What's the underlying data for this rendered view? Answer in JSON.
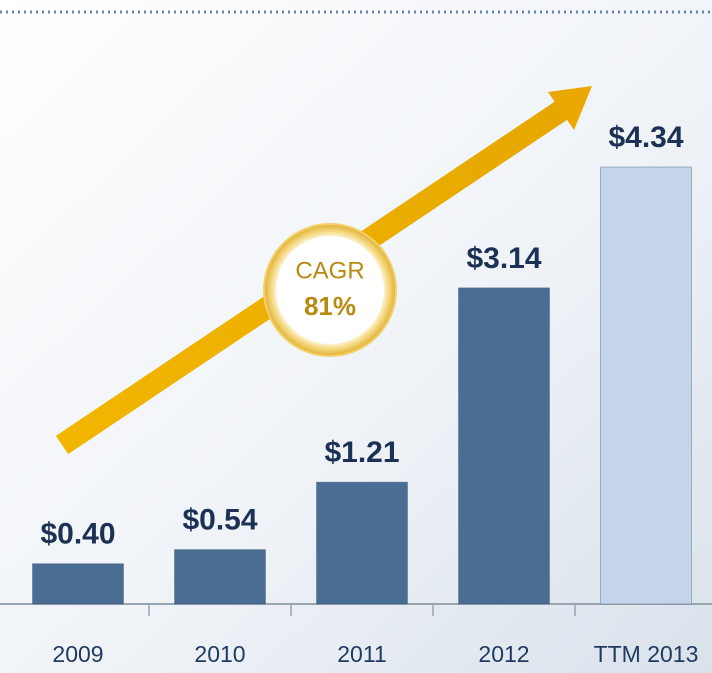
{
  "chart_data": {
    "type": "bar",
    "categories": [
      "2009",
      "2010",
      "2011",
      "2012",
      "TTM 2013"
    ],
    "values": [
      0.4,
      0.54,
      1.21,
      3.14,
      4.34
    ],
    "value_labels": [
      "$0.40",
      "$0.54",
      "$1.21",
      "$3.14",
      "$4.34"
    ],
    "colors": [
      "#4a6d94",
      "#4a6d94",
      "#4a6d94",
      "#4a6d94",
      "#c4d5ea"
    ],
    "annotations": [
      "CAGR",
      "81%"
    ]
  }
}
